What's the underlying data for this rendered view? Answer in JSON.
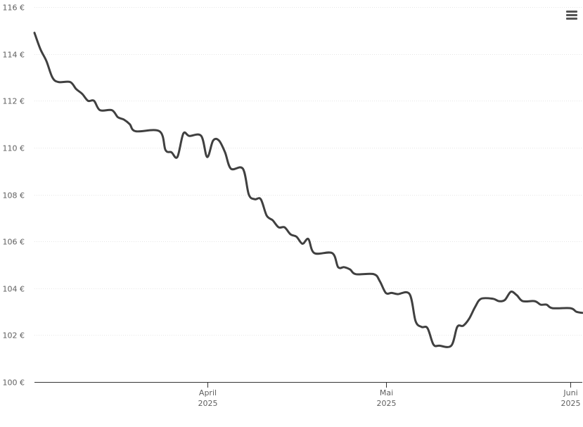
{
  "chart_data": {
    "type": "line",
    "title": "",
    "xlabel": "",
    "ylabel": "",
    "ylim": [
      100,
      116
    ],
    "y_ticks": [
      "100 €",
      "102 €",
      "104 €",
      "106 €",
      "108 €",
      "110 €",
      "112 €",
      "114 €",
      "116 €"
    ],
    "y_tick_values": [
      100,
      102,
      104,
      106,
      108,
      110,
      112,
      114,
      116
    ],
    "x_range": [
      "2025-03-03",
      "2025-06-03"
    ],
    "x_ticks": [
      {
        "date": "2025-04-01",
        "label": "April",
        "year": "2025"
      },
      {
        "date": "2025-05-01",
        "label": "Mai",
        "year": "2025"
      },
      {
        "date": "2025-06-01",
        "label": "Juni",
        "year": "2025"
      }
    ],
    "grid": true,
    "line_color": "#404040",
    "series": [
      {
        "name": "",
        "points": [
          [
            "2025-03-03",
            114.9
          ],
          [
            "2025-03-04",
            114.2
          ],
          [
            "2025-03-05",
            113.7
          ],
          [
            "2025-03-06",
            113.0
          ],
          [
            "2025-03-07",
            112.8
          ],
          [
            "2025-03-09",
            112.8
          ],
          [
            "2025-03-10",
            112.5
          ],
          [
            "2025-03-11",
            112.3
          ],
          [
            "2025-03-12",
            112.0
          ],
          [
            "2025-03-13",
            112.0
          ],
          [
            "2025-03-14",
            111.6
          ],
          [
            "2025-03-16",
            111.6
          ],
          [
            "2025-03-17",
            111.3
          ],
          [
            "2025-03-18",
            111.2
          ],
          [
            "2025-03-19",
            111.0
          ],
          [
            "2025-03-20",
            110.7
          ],
          [
            "2025-03-24",
            110.7
          ],
          [
            "2025-03-25",
            109.9
          ],
          [
            "2025-03-26",
            109.8
          ],
          [
            "2025-03-27",
            109.6
          ],
          [
            "2025-03-28",
            110.6
          ],
          [
            "2025-03-29",
            110.5
          ],
          [
            "2025-03-31",
            110.5
          ],
          [
            "2025-04-01",
            109.6
          ],
          [
            "2025-04-02",
            110.3
          ],
          [
            "2025-04-03",
            110.3
          ],
          [
            "2025-04-04",
            109.8
          ],
          [
            "2025-04-05",
            109.1
          ],
          [
            "2025-04-07",
            109.1
          ],
          [
            "2025-04-08",
            108.0
          ],
          [
            "2025-04-09",
            107.8
          ],
          [
            "2025-04-10",
            107.8
          ],
          [
            "2025-04-11",
            107.1
          ],
          [
            "2025-04-12",
            106.9
          ],
          [
            "2025-04-13",
            106.6
          ],
          [
            "2025-04-14",
            106.6
          ],
          [
            "2025-04-15",
            106.3
          ],
          [
            "2025-04-16",
            106.2
          ],
          [
            "2025-04-17",
            105.9
          ],
          [
            "2025-04-18",
            106.1
          ],
          [
            "2025-04-19",
            105.5
          ],
          [
            "2025-04-22",
            105.5
          ],
          [
            "2025-04-23",
            104.9
          ],
          [
            "2025-04-24",
            104.9
          ],
          [
            "2025-04-25",
            104.8
          ],
          [
            "2025-04-26",
            104.6
          ],
          [
            "2025-04-29",
            104.6
          ],
          [
            "2025-04-30",
            104.3
          ],
          [
            "2025-05-01",
            103.8
          ],
          [
            "2025-05-02",
            103.8
          ],
          [
            "2025-05-03",
            103.75
          ],
          [
            "2025-05-05",
            103.75
          ],
          [
            "2025-05-06",
            102.6
          ],
          [
            "2025-05-07",
            102.35
          ],
          [
            "2025-05-08",
            102.3
          ],
          [
            "2025-05-09",
            101.6
          ],
          [
            "2025-05-10",
            101.55
          ],
          [
            "2025-05-12",
            101.55
          ],
          [
            "2025-05-13",
            102.35
          ],
          [
            "2025-05-14",
            102.4
          ],
          [
            "2025-05-15",
            102.7
          ],
          [
            "2025-05-16",
            103.2
          ],
          [
            "2025-05-17",
            103.55
          ],
          [
            "2025-05-19",
            103.55
          ],
          [
            "2025-05-20",
            103.45
          ],
          [
            "2025-05-21",
            103.5
          ],
          [
            "2025-05-22",
            103.85
          ],
          [
            "2025-05-23",
            103.7
          ],
          [
            "2025-05-24",
            103.45
          ],
          [
            "2025-05-26",
            103.45
          ],
          [
            "2025-05-27",
            103.3
          ],
          [
            "2025-05-28",
            103.3
          ],
          [
            "2025-05-29",
            103.15
          ],
          [
            "2025-06-01",
            103.15
          ],
          [
            "2025-06-02",
            103.0
          ],
          [
            "2025-06-03",
            102.95
          ]
        ]
      }
    ]
  },
  "toolbar": {
    "menu_icon": "hamburger-menu-icon"
  }
}
